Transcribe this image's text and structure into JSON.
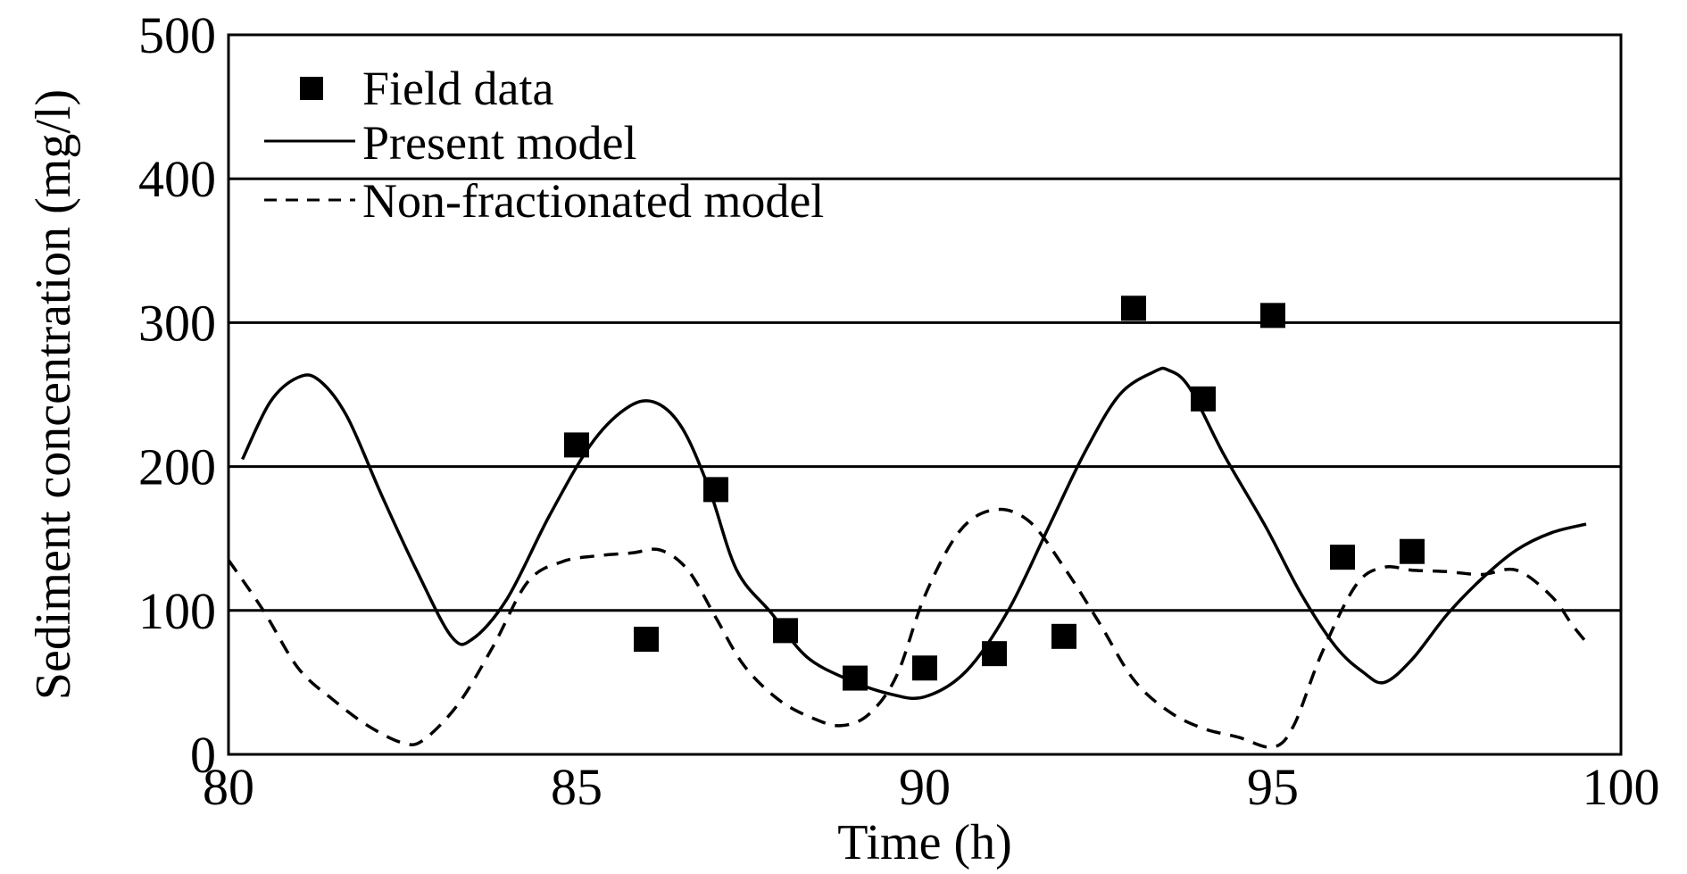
{
  "chart_data": {
    "type": "line",
    "xlabel": "Time (h)",
    "ylabel": "Sediment concentration (mg/l)",
    "xlim": [
      80,
      100
    ],
    "ylim": [
      0,
      500
    ],
    "x_ticks": [
      80,
      85,
      90,
      95,
      100
    ],
    "y_ticks": [
      0,
      100,
      200,
      300,
      400,
      500
    ],
    "grid": "horizontal",
    "legend": {
      "placement": "top-left",
      "entries": [
        "Field data",
        "Present model",
        "Non-fractionated model"
      ]
    },
    "series": [
      {
        "name": "Field data",
        "style": "square-markers",
        "points": [
          [
            85,
            215
          ],
          [
            86,
            80
          ],
          [
            87,
            184
          ],
          [
            88,
            86
          ],
          [
            89,
            53
          ],
          [
            90,
            60
          ],
          [
            91,
            70
          ],
          [
            92,
            82
          ],
          [
            93,
            310
          ],
          [
            94,
            247
          ],
          [
            95,
            305
          ],
          [
            96,
            137
          ],
          [
            97,
            141
          ]
        ]
      },
      {
        "name": "Present model",
        "style": "solid",
        "points": [
          [
            80.2,
            205
          ],
          [
            80.6,
            245
          ],
          [
            81.0,
            262
          ],
          [
            81.3,
            260
          ],
          [
            81.7,
            235
          ],
          [
            82.2,
            180
          ],
          [
            82.7,
            128
          ],
          [
            83.2,
            82
          ],
          [
            83.5,
            80
          ],
          [
            84.0,
            108
          ],
          [
            84.6,
            165
          ],
          [
            85.2,
            215
          ],
          [
            85.7,
            240
          ],
          [
            86.1,
            245
          ],
          [
            86.5,
            228
          ],
          [
            86.9,
            185
          ],
          [
            87.3,
            128
          ],
          [
            87.8,
            98
          ],
          [
            88.3,
            68
          ],
          [
            88.9,
            52
          ],
          [
            89.5,
            42
          ],
          [
            90.0,
            40
          ],
          [
            90.6,
            58
          ],
          [
            91.2,
            100
          ],
          [
            91.8,
            160
          ],
          [
            92.3,
            210
          ],
          [
            92.8,
            250
          ],
          [
            93.3,
            266
          ],
          [
            93.5,
            267
          ],
          [
            93.8,
            255
          ],
          [
            94.3,
            208
          ],
          [
            94.9,
            158
          ],
          [
            95.4,
            112
          ],
          [
            95.9,
            75
          ],
          [
            96.3,
            57
          ],
          [
            96.6,
            50
          ],
          [
            97.0,
            66
          ],
          [
            97.5,
            97
          ],
          [
            98.0,
            122
          ],
          [
            98.5,
            142
          ],
          [
            99.0,
            154
          ],
          [
            99.5,
            160
          ]
        ]
      },
      {
        "name": "Non-fractionated model",
        "style": "dashed",
        "points": [
          [
            80.0,
            135
          ],
          [
            80.5,
            100
          ],
          [
            81.0,
            60
          ],
          [
            81.5,
            38
          ],
          [
            82.0,
            20
          ],
          [
            82.5,
            8
          ],
          [
            82.8,
            10
          ],
          [
            83.3,
            35
          ],
          [
            83.8,
            75
          ],
          [
            84.3,
            120
          ],
          [
            84.8,
            134
          ],
          [
            85.3,
            138
          ],
          [
            85.8,
            140
          ],
          [
            86.2,
            142
          ],
          [
            86.6,
            128
          ],
          [
            87.0,
            95
          ],
          [
            87.4,
            62
          ],
          [
            87.9,
            38
          ],
          [
            88.4,
            25
          ],
          [
            88.8,
            20
          ],
          [
            89.2,
            28
          ],
          [
            89.6,
            55
          ],
          [
            90.0,
            110
          ],
          [
            90.5,
            155
          ],
          [
            91.0,
            170
          ],
          [
            91.5,
            162
          ],
          [
            92.0,
            130
          ],
          [
            92.5,
            92
          ],
          [
            93.0,
            52
          ],
          [
            93.5,
            30
          ],
          [
            94.0,
            18
          ],
          [
            94.5,
            12
          ],
          [
            95.0,
            5
          ],
          [
            95.3,
            20
          ],
          [
            95.7,
            70
          ],
          [
            96.2,
            118
          ],
          [
            96.6,
            130
          ],
          [
            97.0,
            128
          ],
          [
            97.5,
            127
          ],
          [
            98.0,
            125
          ],
          [
            98.5,
            128
          ],
          [
            99.0,
            110
          ],
          [
            99.3,
            90
          ],
          [
            99.5,
            78
          ]
        ]
      }
    ]
  }
}
